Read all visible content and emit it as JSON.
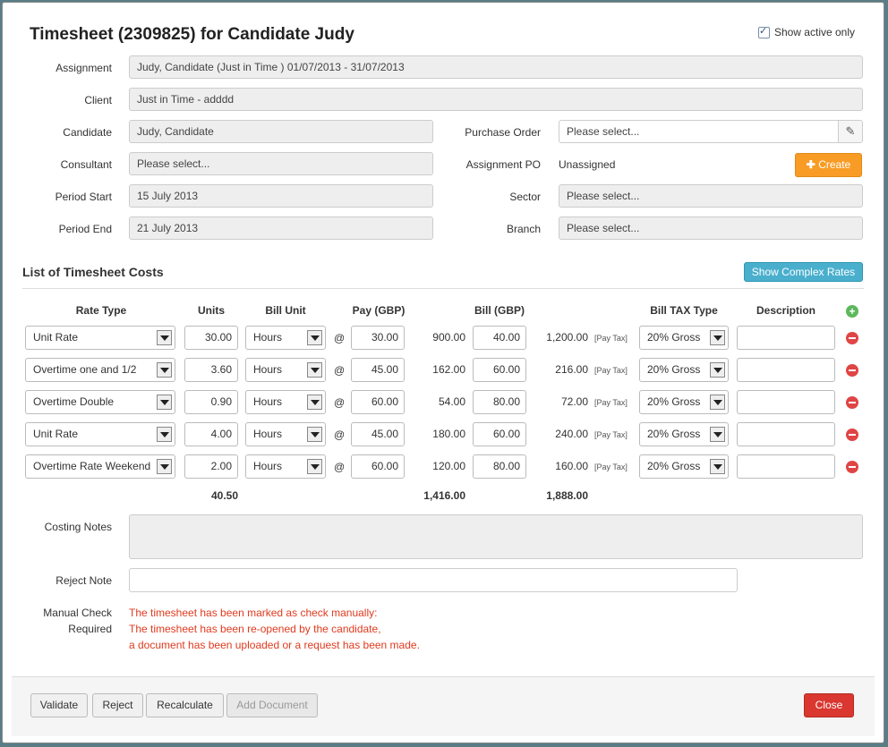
{
  "title": "Timesheet (2309825) for Candidate Judy",
  "show_active_only": "Show active only",
  "form": {
    "assignment_label": "Assignment",
    "assignment_value": "Judy, Candidate (Just in Time ) 01/07/2013 - 31/07/2013",
    "client_label": "Client",
    "client_value": "Just in Time - adddd",
    "candidate_label": "Candidate",
    "candidate_value": "Judy, Candidate",
    "consultant_label": "Consultant",
    "consultant_value": "Please select...",
    "period_start_label": "Period Start",
    "period_start_value": "15 July 2013",
    "period_end_label": "Period End",
    "period_end_value": "21 July 2013",
    "purchase_order_label": "Purchase Order",
    "purchase_order_value": "Please select...",
    "assignment_po_label": "Assignment PO",
    "assignment_po_value": "Unassigned",
    "create_label": "Create",
    "sector_label": "Sector",
    "sector_value": "Please select...",
    "branch_label": "Branch",
    "branch_value": "Please select..."
  },
  "costs": {
    "section_title": "List of Timesheet Costs",
    "show_complex_rates": "Show Complex Rates",
    "headers": {
      "rate_type": "Rate Type",
      "units": "Units",
      "bill_unit": "Bill Unit",
      "pay": "Pay (GBP)",
      "bill": "Bill (GBP)",
      "bill_tax_type": "Bill TAX Type",
      "description": "Description"
    },
    "at": "@",
    "pay_tax": "[Pay Tax]",
    "rows": [
      {
        "rate_type": "Unit Rate",
        "units": "30.00",
        "bill_unit": "Hours",
        "pay": "30.00",
        "pay_total": "900.00",
        "bill": "40.00",
        "bill_total": "1,200.00",
        "tax": "20% Gross"
      },
      {
        "rate_type": "Overtime one and 1/2",
        "units": "3.60",
        "bill_unit": "Hours",
        "pay": "45.00",
        "pay_total": "162.00",
        "bill": "60.00",
        "bill_total": "216.00",
        "tax": "20% Gross"
      },
      {
        "rate_type": "Overtime Double",
        "units": "0.90",
        "bill_unit": "Hours",
        "pay": "60.00",
        "pay_total": "54.00",
        "bill": "80.00",
        "bill_total": "72.00",
        "tax": "20% Gross"
      },
      {
        "rate_type": "Unit Rate",
        "units": "4.00",
        "bill_unit": "Hours",
        "pay": "45.00",
        "pay_total": "180.00",
        "bill": "60.00",
        "bill_total": "240.00",
        "tax": "20% Gross"
      },
      {
        "rate_type": "Overtime Rate Weekend",
        "units": "2.00",
        "bill_unit": "Hours",
        "pay": "60.00",
        "pay_total": "120.00",
        "bill": "80.00",
        "bill_total": "160.00",
        "tax": "20% Gross"
      }
    ],
    "totals": {
      "units": "40.50",
      "pay": "1,416.00",
      "bill": "1,888.00"
    }
  },
  "notes": {
    "costing_notes_label": "Costing Notes",
    "reject_note_label": "Reject Note",
    "manual_check_label_1": "Manual Check",
    "manual_check_label_2": "Required",
    "warning_1": "The timesheet has been marked as check manually:",
    "warning_2": "The timesheet has been re-opened by the candidate,",
    "warning_3": "a document has been uploaded or a request has been made."
  },
  "footer": {
    "validate": "Validate",
    "reject": "Reject",
    "recalculate": "Recalculate",
    "add_document": "Add Document",
    "close": "Close"
  },
  "colors": {
    "accent_orange": "#f89c25",
    "info_blue": "#49afcd",
    "danger_red": "#d9372f",
    "warning_text": "#e03a1e"
  }
}
